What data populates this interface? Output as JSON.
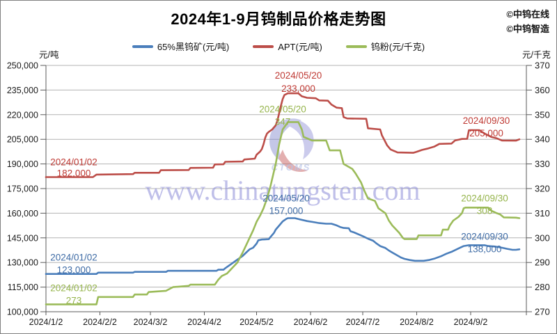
{
  "header": {
    "title": "2024年1-9月钨制品价格走势图",
    "attribution": [
      "©中钨在线",
      "©中钨智造"
    ]
  },
  "axes": {
    "left_unit": "元/吨",
    "right_unit": "元/千克"
  },
  "legend": [
    {
      "label": "65%黑钨矿(元/吨)",
      "color": "#4a7ebb"
    },
    {
      "label": "APT(元/吨)",
      "color": "#bc4d48"
    },
    {
      "label": "钨粉(元/千克)",
      "color": "#9bbb59"
    }
  ],
  "watermark": {
    "logo_text": "CTOMS",
    "url": "www.chinatungsten.com"
  },
  "chart_data": {
    "type": "line",
    "title": "2024年1-9月钨制品价格走势图",
    "x_unit": "days since 2024/1/2",
    "x_domain_days": 276,
    "x_tick_days": [
      0,
      31,
      60,
      91,
      121,
      152,
      182,
      213,
      244
    ],
    "x_tick_labels": [
      "2024/1/2",
      "2024/2/2",
      "2024/3/2",
      "2024/4/2",
      "2024/5/2",
      "2024/6/2",
      "2024/7/2",
      "2024/8/2",
      "2024/9/2"
    ],
    "left_axis": {
      "label": "元/吨",
      "min": 100000,
      "max": 250000,
      "ticks": [
        250000,
        235000,
        220000,
        205000,
        190000,
        175000,
        160000,
        145000,
        130000,
        115000,
        100000
      ],
      "tick_labels": [
        "250,000",
        "235,000",
        "220,000",
        "205,000",
        "190,000",
        "175,000",
        "160,000",
        "145,000",
        "130,000",
        "115,000",
        "100,000"
      ]
    },
    "right_axis": {
      "label": "元/千克",
      "min": 270,
      "max": 370,
      "ticks": [
        370,
        360,
        350,
        340,
        330,
        320,
        310,
        300,
        290,
        280,
        270
      ],
      "tick_labels": [
        "370",
        "360",
        "350",
        "340",
        "330",
        "320",
        "310",
        "300",
        "290",
        "280",
        "270"
      ]
    },
    "grid": true,
    "legend_position": "top",
    "series": [
      {
        "id": "black-tungsten-ore",
        "name": "65%黑钨矿(元/吨)",
        "axis": "L",
        "color": "#4a7ebb",
        "text_color": "#3e6ba5",
        "points": [
          [
            0,
            123000
          ],
          [
            29,
            123000
          ],
          [
            30,
            123800
          ],
          [
            50,
            123800
          ],
          [
            51,
            124300
          ],
          [
            69,
            124300
          ],
          [
            70,
            124900
          ],
          [
            98,
            124900
          ],
          [
            99,
            125600
          ],
          [
            102,
            125600
          ],
          [
            103,
            126500
          ],
          [
            105,
            128000
          ],
          [
            107,
            129500
          ],
          [
            109,
            131000
          ],
          [
            111,
            132500
          ],
          [
            113,
            134000
          ],
          [
            115,
            136000
          ],
          [
            117,
            138000
          ],
          [
            119,
            139000
          ],
          [
            121,
            141500
          ],
          [
            122,
            143500
          ],
          [
            124,
            144000
          ],
          [
            128,
            144200
          ],
          [
            129,
            145500
          ],
          [
            131,
            148000
          ],
          [
            132,
            150000
          ],
          [
            134,
            152500
          ],
          [
            136,
            155000
          ],
          [
            138,
            156500
          ],
          [
            139,
            157000
          ],
          [
            143,
            157000
          ],
          [
            146,
            156200
          ],
          [
            150,
            155200
          ],
          [
            153,
            154700
          ],
          [
            157,
            154000
          ],
          [
            161,
            153600
          ],
          [
            164,
            153600
          ],
          [
            167,
            152600
          ],
          [
            169,
            151600
          ],
          [
            171,
            151000
          ],
          [
            174,
            150800
          ],
          [
            175,
            149000
          ],
          [
            177,
            148300
          ],
          [
            181,
            146500
          ],
          [
            183,
            145500
          ],
          [
            185,
            144500
          ],
          [
            188,
            143200
          ],
          [
            190,
            141500
          ],
          [
            192,
            140000
          ],
          [
            195,
            138800
          ],
          [
            197,
            137300
          ],
          [
            199,
            136000
          ],
          [
            202,
            134200
          ],
          [
            204,
            133000
          ],
          [
            206,
            132200
          ],
          [
            209,
            131500
          ],
          [
            212,
            131000
          ],
          [
            217,
            131000
          ],
          [
            220,
            131500
          ],
          [
            223,
            132300
          ],
          [
            227,
            133800
          ],
          [
            230,
            135300
          ],
          [
            233,
            136500
          ],
          [
            237,
            138500
          ],
          [
            240,
            140000
          ],
          [
            243,
            140500
          ],
          [
            252,
            140500
          ],
          [
            254,
            140000
          ],
          [
            258,
            139700
          ],
          [
            262,
            139000
          ],
          [
            265,
            138300
          ],
          [
            268,
            137700
          ],
          [
            270,
            137700
          ],
          [
            272,
            138000
          ]
        ]
      },
      {
        "id": "apt",
        "name": "APT(元/吨)",
        "axis": "L",
        "color": "#bc4d48",
        "text_color": "#bf3a34",
        "points": [
          [
            0,
            182000
          ],
          [
            27,
            182000
          ],
          [
            29,
            183500
          ],
          [
            50,
            183800
          ],
          [
            51,
            184600
          ],
          [
            65,
            184600
          ],
          [
            66,
            186200
          ],
          [
            82,
            186300
          ],
          [
            83,
            187600
          ],
          [
            96,
            187700
          ],
          [
            97,
            189700
          ],
          [
            102,
            189800
          ],
          [
            103,
            191300
          ],
          [
            113,
            191500
          ],
          [
            114,
            192700
          ],
          [
            120,
            193200
          ],
          [
            121,
            195600
          ],
          [
            123,
            197500
          ],
          [
            124,
            199000
          ],
          [
            125,
            202000
          ],
          [
            126,
            206000
          ],
          [
            127,
            208500
          ],
          [
            128,
            209500
          ],
          [
            130,
            211000
          ],
          [
            132,
            213500
          ],
          [
            133,
            216500
          ],
          [
            134,
            221000
          ],
          [
            135,
            225500
          ],
          [
            136,
            229500
          ],
          [
            137,
            232000
          ],
          [
            139,
            233000
          ],
          [
            145,
            233000
          ],
          [
            147,
            231200
          ],
          [
            150,
            230300
          ],
          [
            155,
            230000
          ],
          [
            157,
            228700
          ],
          [
            162,
            228500
          ],
          [
            164,
            226200
          ],
          [
            167,
            224300
          ],
          [
            170,
            224000
          ],
          [
            171,
            218500
          ],
          [
            173,
            217700
          ],
          [
            184,
            217500
          ],
          [
            185,
            211700
          ],
          [
            192,
            211000
          ],
          [
            193,
            207500
          ],
          [
            196,
            201300
          ],
          [
            198,
            198800
          ],
          [
            202,
            197000
          ],
          [
            211,
            196800
          ],
          [
            213,
            197400
          ],
          [
            216,
            198500
          ],
          [
            219,
            199300
          ],
          [
            223,
            200500
          ],
          [
            226,
            202200
          ],
          [
            233,
            202400
          ],
          [
            235,
            204300
          ],
          [
            239,
            205200
          ],
          [
            242,
            205300
          ],
          [
            243,
            210600
          ],
          [
            249,
            210600
          ],
          [
            250,
            209800
          ],
          [
            252,
            208500
          ],
          [
            256,
            206400
          ],
          [
            259,
            205600
          ],
          [
            262,
            204300
          ],
          [
            270,
            204200
          ],
          [
            272,
            205000
          ]
        ]
      },
      {
        "id": "tungsten-powder",
        "name": "钨粉(元/千克)",
        "axis": "R",
        "color": "#9bbb59",
        "text_color": "#95b44b",
        "points": [
          [
            0,
            273
          ],
          [
            29,
            273
          ],
          [
            30,
            276
          ],
          [
            50,
            276
          ],
          [
            51,
            277
          ],
          [
            58,
            277
          ],
          [
            59,
            278
          ],
          [
            69,
            278.5
          ],
          [
            73,
            280
          ],
          [
            82,
            280.5
          ],
          [
            83,
            281
          ],
          [
            97,
            281
          ],
          [
            99,
            283
          ],
          [
            101,
            284.5
          ],
          [
            104,
            285.5
          ],
          [
            106,
            287
          ],
          [
            108,
            288.5
          ],
          [
            110,
            290
          ],
          [
            113,
            294
          ],
          [
            115,
            297
          ],
          [
            117,
            300
          ],
          [
            119,
            303
          ],
          [
            121,
            306.5
          ],
          [
            123,
            309
          ],
          [
            125,
            312
          ],
          [
            127,
            316
          ],
          [
            129,
            321
          ],
          [
            130,
            324
          ],
          [
            132,
            330
          ],
          [
            133,
            334
          ],
          [
            134,
            338
          ],
          [
            135,
            341
          ],
          [
            136,
            344
          ],
          [
            138,
            346
          ],
          [
            139,
            347
          ],
          [
            145,
            347
          ],
          [
            147,
            344
          ],
          [
            148,
            341
          ],
          [
            153,
            339.5
          ],
          [
            161,
            339.5
          ],
          [
            163,
            335.5
          ],
          [
            169,
            335.5
          ],
          [
            171,
            330
          ],
          [
            176,
            328
          ],
          [
            178,
            326
          ],
          [
            181,
            322.5
          ],
          [
            183,
            319
          ],
          [
            185,
            316
          ],
          [
            189,
            315
          ],
          [
            191,
            312
          ],
          [
            195,
            310
          ],
          [
            197,
            307
          ],
          [
            199,
            305
          ],
          [
            203,
            302
          ],
          [
            205,
            300
          ],
          [
            206,
            299.5
          ],
          [
            213,
            299.5
          ],
          [
            214,
            301
          ],
          [
            227,
            301
          ],
          [
            228,
            303.3
          ],
          [
            231,
            303.3
          ],
          [
            232,
            305
          ],
          [
            234,
            307
          ],
          [
            237,
            308.5
          ],
          [
            239,
            310
          ],
          [
            240,
            312
          ],
          [
            241,
            312.3
          ],
          [
            254,
            312.3
          ],
          [
            256,
            311
          ],
          [
            259,
            310
          ],
          [
            261,
            309.5
          ],
          [
            263,
            308.3
          ],
          [
            270,
            308.2
          ],
          [
            272,
            308
          ]
        ]
      }
    ],
    "annotations": [
      {
        "series": "apt",
        "lines": [
          "2024/01/02",
          "182,000"
        ],
        "day": 16,
        "value": 182000,
        "axis": "L",
        "dy": [
          -17,
          -1
        ]
      },
      {
        "series": "black-tungsten-ore",
        "lines": [
          "2024/01/02",
          "123,000"
        ],
        "day": 16,
        "value": 123000,
        "axis": "L",
        "dy": [
          -19,
          -1
        ]
      },
      {
        "series": "tungsten-powder",
        "lines": [
          "2024/01/02",
          "273"
        ],
        "day": 16,
        "value": 273,
        "axis": "R",
        "dy": [
          -19,
          -1
        ]
      },
      {
        "series": "apt",
        "lines": [
          "2024/05/20",
          "233,000"
        ],
        "day": 145,
        "value": 233000,
        "axis": "L",
        "dy": [
          -21,
          -2
        ]
      },
      {
        "series": "tungsten-powder",
        "lines": [
          "2024/05/20",
          "347"
        ],
        "day": 136,
        "value": 347,
        "axis": "R",
        "dy": [
          -14,
          4
        ]
      },
      {
        "series": "black-tungsten-ore",
        "lines": [
          "2024/05/20",
          "157,000"
        ],
        "day": 138,
        "value": 157000,
        "axis": "L",
        "dy": [
          -24,
          -6
        ]
      },
      {
        "series": "apt",
        "lines": [
          "2024/09/30",
          "205,000"
        ],
        "day": 253,
        "value": 211000,
        "axis": "L",
        "dy": [
          -8,
          10
        ]
      },
      {
        "series": "tungsten-powder",
        "lines": [
          "2024/09/30",
          "308"
        ],
        "day": 252,
        "value": 312.3,
        "axis": "R",
        "dy": [
          -9,
          9
        ]
      },
      {
        "series": "black-tungsten-ore",
        "lines": [
          "2024/09/30",
          "138,000"
        ],
        "day": 252,
        "value": 140500,
        "axis": "L",
        "dy": [
          -8,
          10
        ]
      }
    ]
  }
}
